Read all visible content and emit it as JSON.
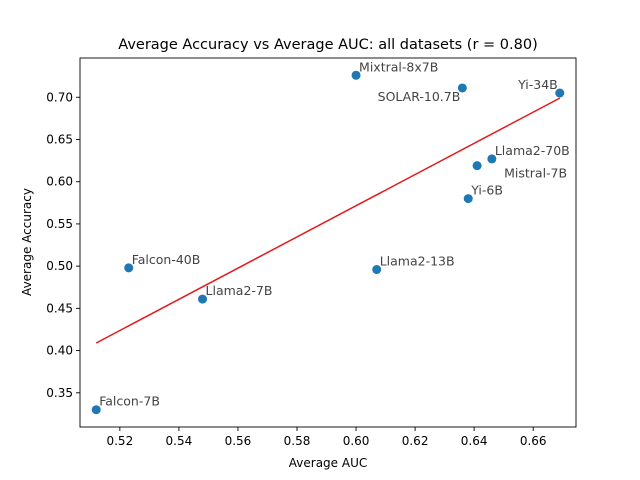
{
  "chart_data": {
    "type": "scatter",
    "title": "Average Accuracy vs Average AUC: all datasets (r = 0.80)",
    "xlabel": "Average AUC",
    "ylabel": "Average Accuracy",
    "xlim": [
      0.5065,
      0.6745
    ],
    "ylim": [
      0.3095,
      0.7465
    ],
    "xticks": [
      0.52,
      0.54,
      0.56,
      0.58,
      0.6,
      0.62,
      0.64,
      0.66
    ],
    "xtick_labels": [
      "0.52",
      "0.54",
      "0.56",
      "0.58",
      "0.60",
      "0.62",
      "0.64",
      "0.66"
    ],
    "yticks": [
      0.35,
      0.4,
      0.45,
      0.5,
      0.55,
      0.6,
      0.65,
      0.7
    ],
    "ytick_labels": [
      "0.35",
      "0.40",
      "0.45",
      "0.50",
      "0.55",
      "0.60",
      "0.65",
      "0.70"
    ],
    "grid": false,
    "point_color": "#1f77b4",
    "fit_color": "#e31a1c",
    "points": [
      {
        "label": "Falcon-7B",
        "x": 0.512,
        "y": 0.33,
        "label_pos": "upper-right"
      },
      {
        "label": "Falcon-40B",
        "x": 0.523,
        "y": 0.498,
        "label_pos": "upper-right"
      },
      {
        "label": "Llama2-7B",
        "x": 0.548,
        "y": 0.461,
        "label_pos": "upper-right"
      },
      {
        "label": "Llama2-13B",
        "x": 0.607,
        "y": 0.496,
        "label_pos": "upper-right"
      },
      {
        "label": "Mixtral-8x7B",
        "x": 0.6,
        "y": 0.726,
        "label_pos": "upper-right"
      },
      {
        "label": "SOLAR-10.7B",
        "x": 0.636,
        "y": 0.711,
        "label_pos": "lower-left"
      },
      {
        "label": "Yi-6B",
        "x": 0.638,
        "y": 0.58,
        "label_pos": "upper-right"
      },
      {
        "label": "Mistral-7B",
        "x": 0.641,
        "y": 0.619,
        "label_pos": "lower-right"
      },
      {
        "label": "Llama2-70B",
        "x": 0.646,
        "y": 0.627,
        "label_pos": "upper-right"
      },
      {
        "label": "Yi-34B",
        "x": 0.669,
        "y": 0.705,
        "label_pos": "upper-left"
      }
    ],
    "fit_line": {
      "x": [
        0.512,
        0.669
      ],
      "y": [
        0.409,
        0.699
      ]
    }
  }
}
